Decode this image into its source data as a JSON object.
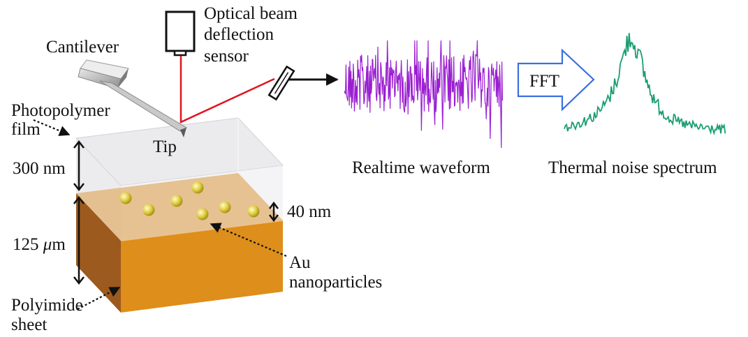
{
  "labels": {
    "cantilever": "Cantilever",
    "sensor_line1": "Optical beam",
    "sensor_line2": "deflection",
    "sensor_line3": "sensor",
    "photopolymer_line1": "Photopolymer",
    "photopolymer_line2": "film",
    "tip": "Tip",
    "thickness_film": "300 nm",
    "thickness_sheet_value": "125 ",
    "thickness_sheet_mu": "μ",
    "thickness_sheet_unit": "m",
    "particle_depth": "40 nm",
    "au_line1": "Au",
    "au_line2": "nanoparticles",
    "polyimide_line1": "Polyimide",
    "polyimide_line2": "sheet",
    "fft": "FFT",
    "waveform": "Realtime waveform",
    "spectrum": "Thermal noise spectrum"
  },
  "colors": {
    "laser": "#e0141e",
    "waveform": "#9b1fd1",
    "spectrum": "#1a9e70",
    "fft_arrow": "#3a6fe0",
    "polyimide_front": "#de8e1a",
    "polyimide_side": "#9c5a1e",
    "film": "#e9e9ec",
    "nanoparticle": "#e6d640"
  }
}
